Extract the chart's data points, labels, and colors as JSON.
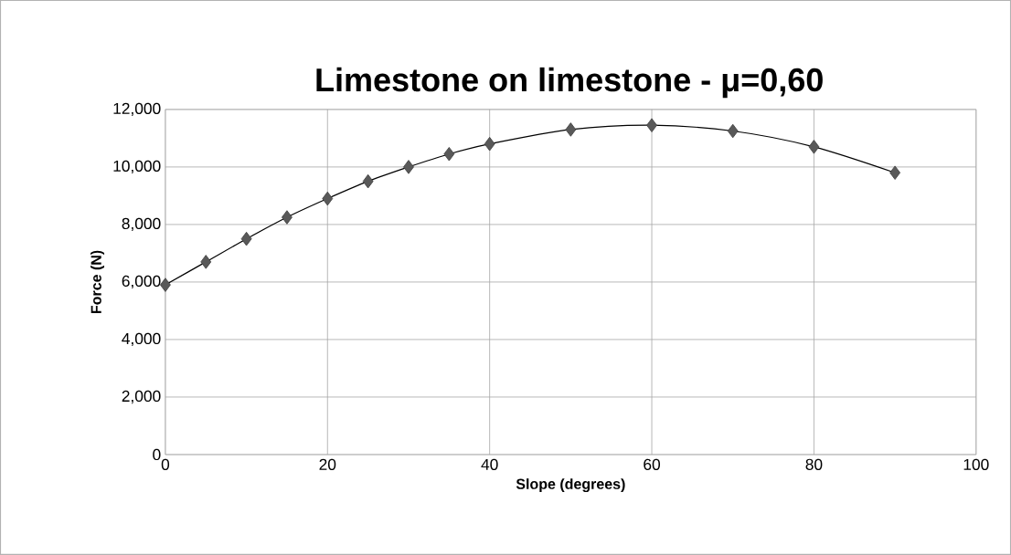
{
  "chart_data": {
    "type": "scatter",
    "title": "Limestone on limestone - μ=0,60",
    "xlabel": "Slope (degrees)",
    "ylabel": "Force (N)",
    "x": [
      0,
      5,
      10,
      15,
      20,
      25,
      30,
      35,
      40,
      50,
      60,
      70,
      80,
      90
    ],
    "series": [
      {
        "color": "#595959",
        "marker": "diamond",
        "values": [
          5900,
          6700,
          7500,
          8250,
          8900,
          9500,
          10000,
          10450,
          10800,
          11300,
          11450,
          11250,
          10700,
          9800
        ]
      },
      {
        "type": "line",
        "color": "#000000",
        "marker": "none",
        "line_style": "solid",
        "x": [
          0,
          5,
          10,
          15,
          20,
          25,
          30,
          35,
          40,
          50,
          60,
          70,
          80,
          90
        ],
        "values": [
          5900,
          6700,
          7500,
          8250,
          8900,
          9500,
          10000,
          10450,
          10800,
          11300,
          11450,
          11250,
          10700,
          9800
        ]
      }
    ],
    "xlim": [
      0,
      100
    ],
    "xticks": [
      0,
      20,
      40,
      60,
      80,
      100
    ],
    "ylim": [
      0,
      12000
    ],
    "yticks": [
      0,
      {
        "value": 2000,
        "label": "2,000"
      },
      {
        "value": 4000,
        "label": "4,000"
      },
      {
        "value": 6000,
        "label": "6,000"
      },
      {
        "value": 8000,
        "label": "8,000"
      },
      {
        "value": 10000,
        "label": "10,000"
      },
      {
        "value": 12000,
        "label": "12,000"
      }
    ],
    "grid": true
  }
}
